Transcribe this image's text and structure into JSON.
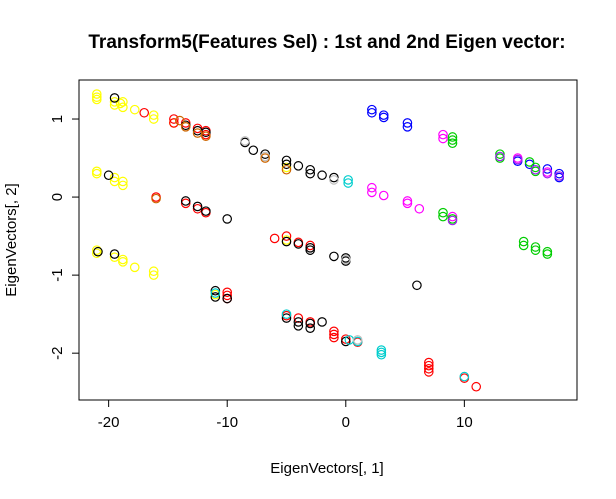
{
  "chart_data": {
    "type": "scatter",
    "title": "Transform5(Features Sel) : 1st and 2nd Eigen vector:",
    "xlabel": "EigenVectors[, 1]",
    "ylabel": "EigenVectors[, 2]",
    "xlim": [
      -22.5,
      19.5
    ],
    "ylim": [
      -2.6,
      1.5
    ],
    "x_ticks": [
      -20,
      -10,
      0,
      10
    ],
    "x_tick_labels": [
      "-20",
      "-10",
      "0",
      "10"
    ],
    "y_ticks": [
      -2,
      -1,
      0,
      1
    ],
    "y_tick_labels": [
      "-2",
      "-1",
      "0",
      "1"
    ],
    "marker": "open-circle",
    "grid": false,
    "series": [
      {
        "color": "#FFFF00",
        "points": [
          [
            -21,
            1.32
          ],
          [
            -21,
            1.28
          ],
          [
            -21,
            1.25
          ],
          [
            -19.5,
            1.22
          ],
          [
            -19.5,
            1.18
          ],
          [
            -19,
            1.2
          ],
          [
            -18.8,
            1.15
          ],
          [
            -18.8,
            1.22
          ],
          [
            -17.8,
            1.12
          ],
          [
            -16.2,
            1.05
          ],
          [
            -16.2,
            1.0
          ],
          [
            -14.5,
            0.95
          ],
          [
            -21,
            0.33
          ],
          [
            -21,
            0.3
          ],
          [
            -19.5,
            0.25
          ],
          [
            -19.5,
            0.2
          ],
          [
            -18.8,
            0.2
          ],
          [
            -18.8,
            0.15
          ],
          [
            -21,
            -0.68
          ],
          [
            -21,
            -0.72
          ],
          [
            -19.5,
            -0.77
          ],
          [
            -18.8,
            -0.8
          ],
          [
            -18.8,
            -0.83
          ],
          [
            -17.8,
            -0.9
          ],
          [
            -16.2,
            -0.95
          ],
          [
            -16.2,
            -1.0
          ],
          [
            -11,
            -1.25
          ],
          [
            -5,
            0.38
          ],
          [
            -5,
            -0.55
          ]
        ]
      },
      {
        "color": "#FF0000",
        "points": [
          [
            -17,
            1.08
          ],
          [
            -14.5,
            1.0
          ],
          [
            -13.5,
            0.95
          ],
          [
            -12.5,
            0.88
          ],
          [
            -11.8,
            0.85
          ],
          [
            -11.8,
            0.8
          ],
          [
            -16,
            0.0
          ],
          [
            -13.5,
            -0.08
          ],
          [
            -12.5,
            -0.15
          ],
          [
            -11.8,
            -0.2
          ],
          [
            -10,
            -1.22
          ],
          [
            -10,
            -1.26
          ],
          [
            -6,
            -0.53
          ],
          [
            -5,
            -0.5
          ],
          [
            -4,
            -0.58
          ],
          [
            -3,
            -0.62
          ],
          [
            -5,
            -1.52
          ],
          [
            -4,
            -1.55
          ],
          [
            -3,
            -1.6
          ],
          [
            -1,
            -1.72
          ],
          [
            -1,
            -1.76
          ],
          [
            -1,
            -1.8
          ],
          [
            0,
            -1.82
          ],
          [
            1,
            -1.86
          ],
          [
            7,
            -2.12
          ],
          [
            7,
            -2.16
          ],
          [
            7,
            -2.2
          ],
          [
            7,
            -2.24
          ],
          [
            10,
            -2.32
          ],
          [
            11,
            -2.43
          ],
          [
            -14.5,
            0.95
          ],
          [
            -10,
            -1.3
          ]
        ]
      },
      {
        "color": "#000000",
        "points": [
          [
            -20,
            0.28
          ],
          [
            -19.5,
            1.27
          ],
          [
            -19.5,
            -0.73
          ],
          [
            -20.9,
            -0.7
          ],
          [
            -13.5,
            0.92
          ],
          [
            -12.5,
            0.85
          ],
          [
            -11.8,
            0.83
          ],
          [
            -13.5,
            -0.05
          ],
          [
            -12.5,
            -0.12
          ],
          [
            -11.8,
            -0.18
          ],
          [
            -11,
            -1.2
          ],
          [
            -10,
            -1.3
          ],
          [
            -10,
            -0.28
          ],
          [
            -8.5,
            0.7
          ],
          [
            -7.8,
            0.6
          ],
          [
            -6.8,
            0.55
          ],
          [
            -5,
            0.42
          ],
          [
            -5,
            0.47
          ],
          [
            -4,
            0.4
          ],
          [
            -3,
            0.35
          ],
          [
            -3,
            0.3
          ],
          [
            -2,
            0.28
          ],
          [
            -1,
            0.25
          ],
          [
            -5,
            -0.57
          ],
          [
            -4,
            -0.6
          ],
          [
            -3,
            -0.65
          ],
          [
            -3,
            -0.68
          ],
          [
            -1,
            -0.76
          ],
          [
            0,
            -0.78
          ],
          [
            0,
            -0.82
          ],
          [
            -5,
            -1.55
          ],
          [
            -4,
            -1.6
          ],
          [
            -4,
            -1.65
          ],
          [
            -3,
            -1.62
          ],
          [
            -3,
            -1.68
          ],
          [
            -2,
            -1.6
          ],
          [
            0,
            -1.85
          ],
          [
            6,
            -1.13
          ],
          [
            -11,
            -1.28
          ]
        ]
      },
      {
        "color": "#0000FF",
        "points": [
          [
            2.2,
            1.12
          ],
          [
            2.2,
            1.08
          ],
          [
            3.2,
            1.05
          ],
          [
            3.2,
            1.02
          ],
          [
            5.2,
            0.95
          ],
          [
            5.2,
            0.9
          ],
          [
            14.5,
            0.46
          ],
          [
            15.5,
            0.42
          ],
          [
            17,
            0.36
          ],
          [
            18,
            0.3
          ],
          [
            18,
            0.25
          ]
        ]
      },
      {
        "color": "#FF00FF",
        "points": [
          [
            2.2,
            0.12
          ],
          [
            2.2,
            0.06
          ],
          [
            3.2,
            0.02
          ],
          [
            5.2,
            -0.05
          ],
          [
            5.2,
            -0.08
          ],
          [
            6.2,
            -0.15
          ],
          [
            8.2,
            0.8
          ],
          [
            8.2,
            0.75
          ],
          [
            9,
            -0.25
          ],
          [
            14.5,
            0.5
          ],
          [
            17,
            0.32
          ]
        ]
      },
      {
        "color": "#00CD00",
        "points": [
          [
            9,
            0.77
          ],
          [
            9,
            0.73
          ],
          [
            9,
            0.69
          ],
          [
            8.2,
            -0.2
          ],
          [
            8.2,
            -0.25
          ],
          [
            9,
            -0.28
          ],
          [
            13,
            0.55
          ],
          [
            13,
            0.5
          ],
          [
            15.5,
            0.45
          ],
          [
            16,
            0.38
          ],
          [
            16,
            0.33
          ],
          [
            15,
            -0.57
          ],
          [
            15,
            -0.62
          ],
          [
            16,
            -0.64
          ],
          [
            16,
            -0.68
          ],
          [
            17,
            -0.7
          ],
          [
            17,
            -0.73
          ]
        ]
      },
      {
        "color": "#00CDCD",
        "points": [
          [
            0.2,
            0.22
          ],
          [
            0.2,
            0.18
          ],
          [
            0.3,
            -1.83
          ],
          [
            1,
            -1.85
          ],
          [
            3,
            -1.96
          ],
          [
            3,
            -1.99
          ],
          [
            3,
            -2.02
          ],
          [
            10,
            -2.3
          ],
          [
            -5,
            -1.5
          ],
          [
            -11,
            -1.23
          ]
        ]
      },
      {
        "color": "#BEBEBE",
        "points": [
          [
            -8.5,
            0.72
          ],
          [
            -6.8,
            0.52
          ],
          [
            -1,
            0.22
          ],
          [
            0,
            -0.8
          ],
          [
            1,
            -1.83
          ]
        ]
      },
      {
        "color": "#A020F0",
        "points": [
          [
            14.5,
            0.48
          ],
          [
            17,
            0.3
          ],
          [
            18,
            0.27
          ],
          [
            13,
            0.52
          ],
          [
            16,
            0.35
          ],
          [
            9,
            -0.3
          ]
        ]
      },
      {
        "color": "#CD6600",
        "points": [
          [
            -16,
            -0.02
          ],
          [
            -14,
            0.98
          ],
          [
            -13.5,
            0.9
          ],
          [
            -12.5,
            0.82
          ],
          [
            -11.8,
            0.78
          ],
          [
            -6.8,
            0.5
          ],
          [
            -5,
            0.35
          ]
        ]
      }
    ]
  }
}
